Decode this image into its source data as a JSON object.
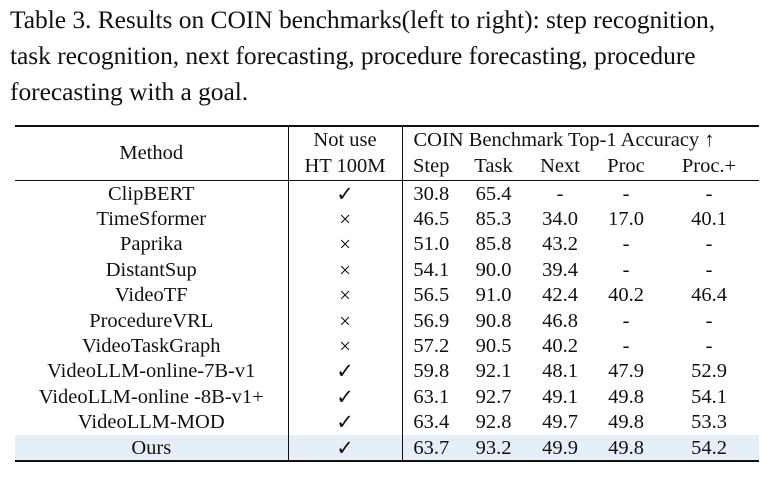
{
  "caption": "Table 3. Results on COIN benchmarks(left to right): step recognition, task recognition, next forecasting, procedure forecasting, procedure forecasting with a goal.",
  "table": {
    "header": {
      "method": "Method",
      "not_use_line1": "Not use",
      "not_use_line2": "HT 100M",
      "group": "COIN Benchmark Top-1 Accuracy ↑",
      "columns": [
        "Step",
        "Task",
        "Next",
        "Proc",
        "Proc.+"
      ]
    },
    "rows": [
      {
        "method": "ClipBERT",
        "ht": "✓",
        "values": [
          "30.8",
          "65.4",
          "-",
          "-",
          "-"
        ]
      },
      {
        "method": "TimeSformer",
        "ht": "×",
        "values": [
          "46.5",
          "85.3",
          "34.0",
          "17.0",
          "40.1"
        ]
      },
      {
        "method": "Paprika",
        "ht": "×",
        "values": [
          "51.0",
          "85.8",
          "43.2",
          "-",
          "-"
        ]
      },
      {
        "method": "DistantSup",
        "ht": "×",
        "values": [
          "54.1",
          "90.0",
          "39.4",
          "-",
          "-"
        ]
      },
      {
        "method": "VideoTF",
        "ht": "×",
        "values": [
          "56.5",
          "91.0",
          "42.4",
          "40.2",
          "46.4"
        ]
      },
      {
        "method": "ProcedureVRL",
        "ht": "×",
        "values": [
          "56.9",
          "90.8",
          "46.8",
          "-",
          "-"
        ]
      },
      {
        "method": "VideoTaskGraph",
        "ht": "×",
        "values": [
          "57.2",
          "90.5",
          "40.2",
          "-",
          "-"
        ]
      },
      {
        "method": "VideoLLM-online-7B-v1",
        "ht": "✓",
        "values": [
          "59.8",
          "92.1",
          "48.1",
          "47.9",
          "52.9"
        ]
      },
      {
        "method": "VideoLLM-online -8B-v1+",
        "ht": "✓",
        "values": [
          "63.1",
          "92.7",
          "49.1",
          "49.8",
          "54.1"
        ]
      },
      {
        "method": "VideoLLM-MOD",
        "ht": "✓",
        "values": [
          "63.4",
          "92.8",
          "49.7",
          "49.8",
          "53.3"
        ]
      },
      {
        "method": "Ours",
        "ht": "✓",
        "values": [
          "63.7",
          "93.2",
          "49.9",
          "49.8",
          "54.2"
        ]
      }
    ]
  }
}
